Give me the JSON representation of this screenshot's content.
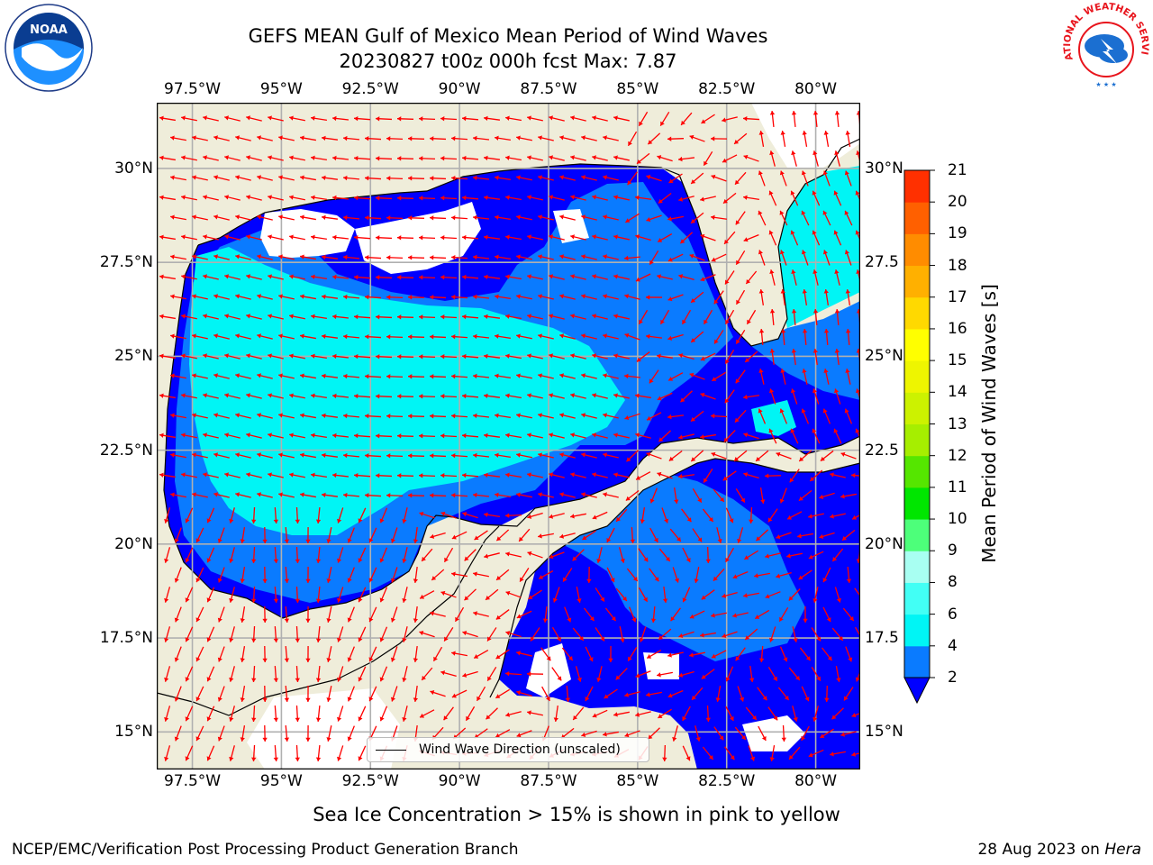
{
  "header": {
    "title_line1": "GEFS MEAN Gulf of Mexico Mean Period of Wind Waves",
    "title_line2": "20230827 t00z 000h fcst   Max: 7.87"
  },
  "logos": {
    "left": {
      "icon": "noaa-logo-icon",
      "text": "NOAA"
    },
    "right": {
      "icon": "nws-logo-icon",
      "text": "NATIONAL WEATHER SERVICE"
    }
  },
  "map": {
    "lon_range": [
      -98.5,
      -78.75
    ],
    "lat_range": [
      14.0,
      31.75
    ],
    "lon_ticks": [
      "97.5°W",
      "95°W",
      "92.5°W",
      "90°W",
      "87.5°W",
      "85°W",
      "82.5°W",
      "80°W"
    ],
    "lon_values": [
      -97.5,
      -95,
      -92.5,
      -90,
      -87.5,
      -85,
      -82.5,
      -80
    ],
    "lat_ticks_left": [
      "30°N",
      "27.5°N",
      "25°N",
      "22.5°N",
      "20°N",
      "17.5°N",
      "15°N"
    ],
    "lat_ticks_right": [
      "30°N",
      "27.5",
      "25°N",
      "22.5",
      "20°N",
      "17.5",
      "15°N"
    ],
    "lat_values": [
      30,
      27.5,
      25,
      22.5,
      20,
      17.5,
      15
    ],
    "legend_label": "Wind Wave Direction (unscaled)",
    "colors": {
      "land": "#efedda",
      "gridline": "#b0b0b0",
      "arrow": "#ff0000"
    }
  },
  "colorbar": {
    "label": "Mean Period of Wind Waves [s]",
    "levels": [
      2,
      4,
      6,
      8,
      9,
      10,
      11,
      12,
      13,
      14,
      15,
      16,
      17,
      18,
      19,
      20,
      21
    ],
    "tick_labels": [
      "2",
      "4",
      "6",
      "8",
      "9",
      "10",
      "11",
      "12",
      "13",
      "14",
      "15",
      "16",
      "17",
      "18",
      "19",
      "20",
      "21"
    ],
    "colors": [
      "#0a7bff",
      "#00f5f5",
      "#42fff5",
      "#a8fff2",
      "#4dff7a",
      "#00e600",
      "#55e600",
      "#a6ee00",
      "#ccf200",
      "#eef500",
      "#ffff00",
      "#ffd900",
      "#ffb000",
      "#ff8c00",
      "#ff6000",
      "#ff3000"
    ],
    "under_color": "#0000ff",
    "top_color": "#ff0000"
  },
  "note": "Sea Ice Concentration > 15% is shown in pink to yellow",
  "footer": {
    "left": "NCEP/EMC/Verification Post Processing Product Generation Branch",
    "date": "28 Aug 2023 on ",
    "machine": "Hera"
  }
}
